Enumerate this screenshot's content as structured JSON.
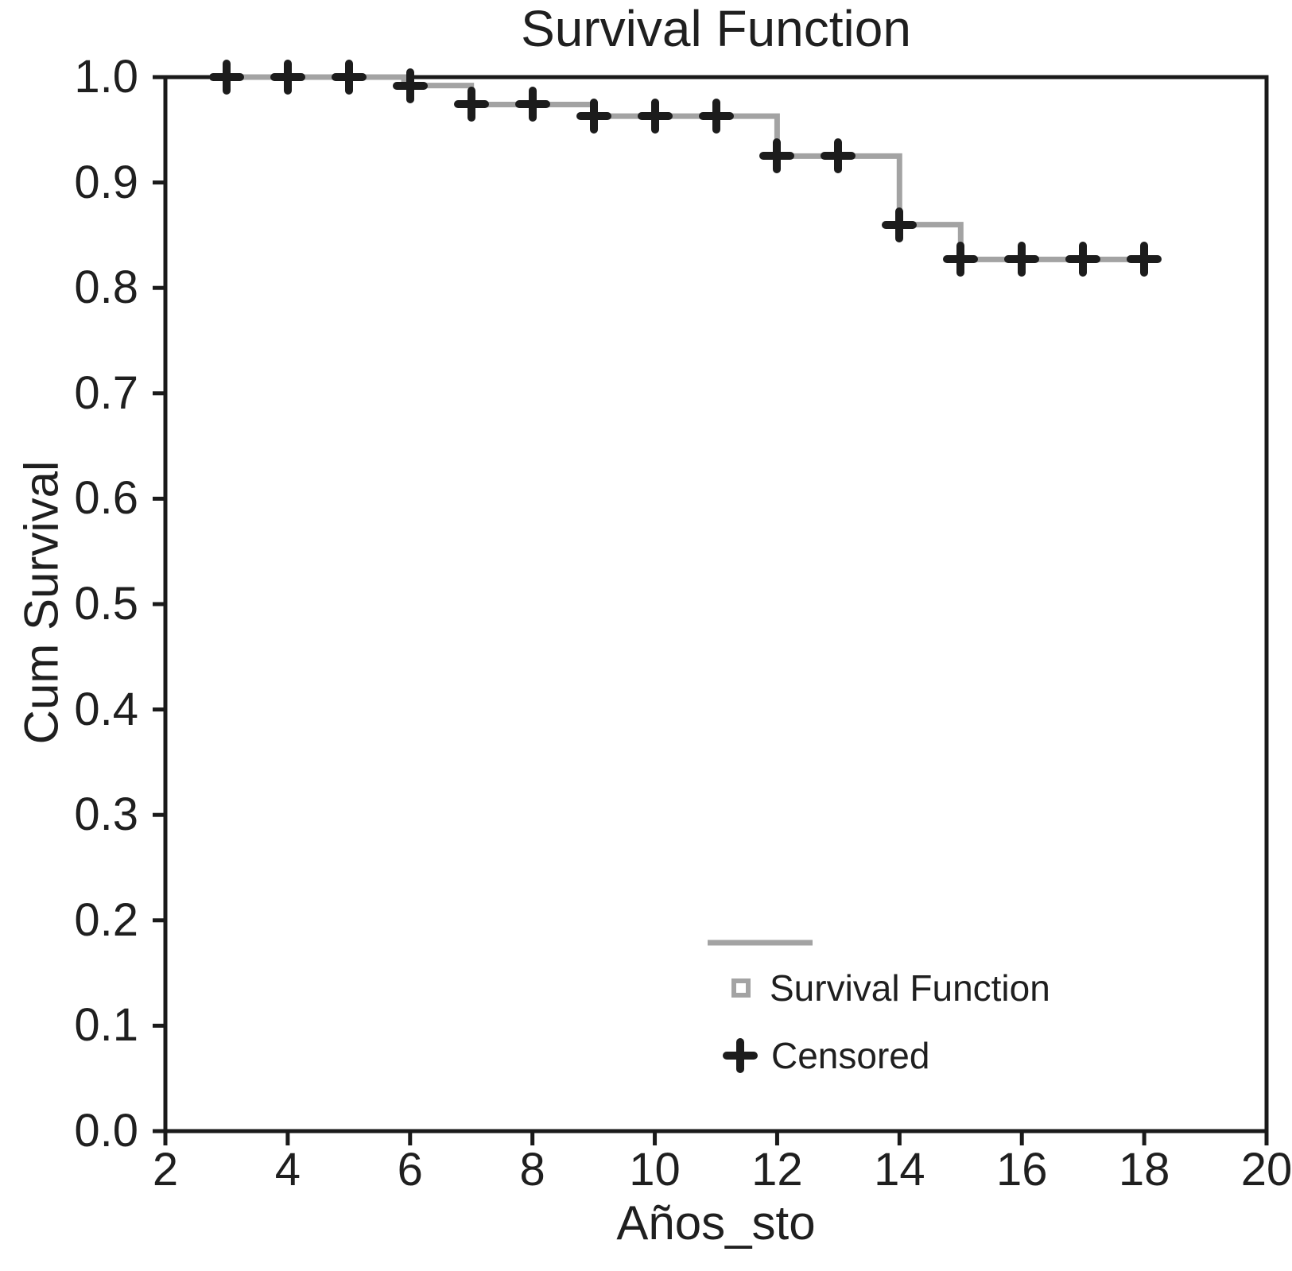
{
  "chart_data": {
    "type": "line",
    "subtype": "kaplan-meier-step",
    "title": "Survival Function",
    "xlabel": "Años_sto",
    "ylabel": "Cum Survival",
    "xlim": [
      2,
      20
    ],
    "ylim": [
      0.0,
      1.0
    ],
    "xticks": [
      2,
      4,
      6,
      8,
      10,
      12,
      14,
      16,
      18,
      20
    ],
    "yticks": [
      0.0,
      0.1,
      0.2,
      0.3,
      0.4,
      0.5,
      0.6,
      0.7,
      0.8,
      0.9,
      1.0
    ],
    "ytick_labels": [
      "0.0",
      "0.1",
      "0.2",
      "0.3",
      "0.4",
      "0.5",
      "0.6",
      "0.7",
      "0.8",
      "0.9",
      "1.0"
    ],
    "grid": false,
    "series": [
      {
        "name": "Survival Function",
        "color": "#a3a3a3",
        "step_points": [
          [
            3,
            1.0
          ],
          [
            5.9,
            0.992
          ],
          [
            7,
            0.974
          ],
          [
            9,
            0.963
          ],
          [
            12,
            0.925
          ],
          [
            14,
            0.86
          ],
          [
            15,
            0.827
          ],
          [
            18,
            0.827
          ]
        ]
      }
    ],
    "censored": {
      "name": "Censored",
      "color": "#1c1c1c",
      "points": [
        [
          3,
          1.0
        ],
        [
          4,
          1.0
        ],
        [
          5,
          1.0
        ],
        [
          6,
          0.992
        ],
        [
          7,
          0.974
        ],
        [
          8,
          0.974
        ],
        [
          9,
          0.963
        ],
        [
          10,
          0.963
        ],
        [
          11,
          0.963
        ],
        [
          12,
          0.925
        ],
        [
          13,
          0.925
        ],
        [
          14,
          0.86
        ],
        [
          15,
          0.827
        ],
        [
          16,
          0.827
        ],
        [
          17,
          0.827
        ],
        [
          18,
          0.827
        ]
      ]
    },
    "legend": {
      "position": "inside-lower-right",
      "entries": [
        {
          "label": "Survival Function",
          "marker": "square-outline",
          "color": "#a3a3a3"
        },
        {
          "label": "Censored",
          "marker": "plus",
          "color": "#1c1c1c"
        }
      ]
    },
    "axis_color": "#1a1a1a",
    "background": "#ffffff"
  }
}
